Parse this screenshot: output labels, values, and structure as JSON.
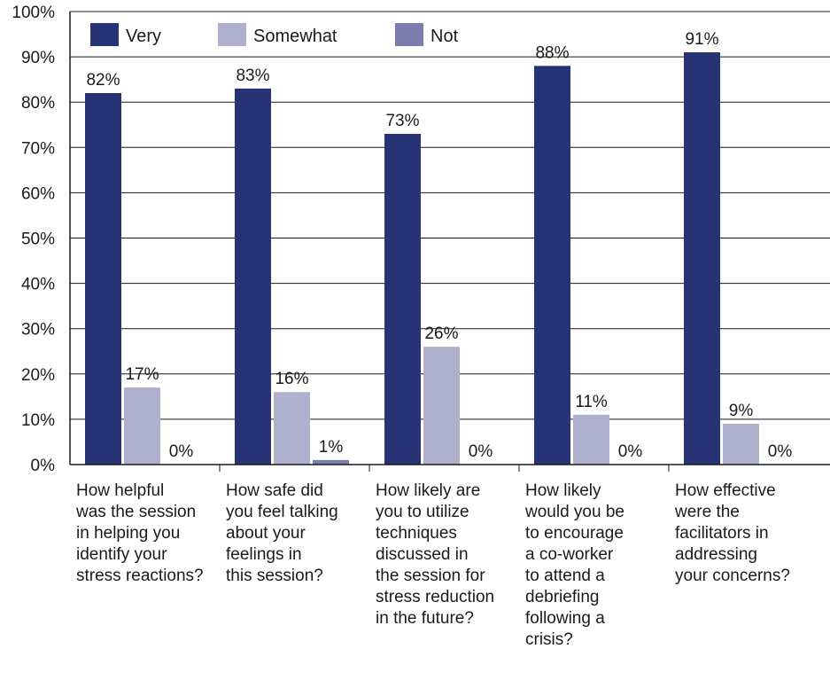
{
  "chart_data": {
    "type": "bar",
    "categories": [
      "How helpful was the session in helping you identify your stress reactions?",
      "How safe did you feel talking about your feelings in this session?",
      "How likely are you to utilize techniques discussed in the session for stress reduction in the future?",
      "How likely would you be to encourage a co-worker to attend a debriefing following a crisis?",
      "How effective were the facilitators in addressing your concerns?"
    ],
    "category_lines": [
      [
        "How helpful",
        "was the session",
        "in helping you",
        "identify your",
        "stress reactions?"
      ],
      [
        "How safe did",
        "you feel talking",
        "about your",
        "feelings in",
        "this session?"
      ],
      [
        "How likely are",
        "you to utilize",
        "techniques",
        "discussed in",
        "the session for",
        "stress reduction",
        "in the future?"
      ],
      [
        "How likely",
        "would you be",
        "to encourage",
        "a co-worker",
        "to attend a",
        "debriefing",
        "following a",
        "crisis?"
      ],
      [
        "How effective",
        "were the",
        "facilitators in",
        "addressing",
        "your concerns?"
      ]
    ],
    "series": [
      {
        "name": "Very",
        "color": "#283375",
        "values": [
          82,
          83,
          73,
          88,
          91
        ],
        "labels": [
          "82%",
          "83%",
          "73%",
          "88%",
          "91%"
        ]
      },
      {
        "name": "Somewhat",
        "color": "#aeb0ce",
        "values": [
          17,
          16,
          26,
          11,
          9
        ],
        "labels": [
          "17%",
          "16%",
          "26%",
          "11%",
          "9%"
        ]
      },
      {
        "name": "Not",
        "color": "#7b7eac",
        "values": [
          0,
          1,
          0,
          0,
          0
        ],
        "labels": [
          "0%",
          "1%",
          "0%",
          "0%",
          "0%"
        ]
      }
    ],
    "y_ticks": [
      "0%",
      "10%",
      "20%",
      "30%",
      "40%",
      "50%",
      "60%",
      "70%",
      "80%",
      "90%",
      "100%"
    ],
    "ylim": [
      0,
      100
    ],
    "grid": true,
    "legend_position": "top"
  }
}
